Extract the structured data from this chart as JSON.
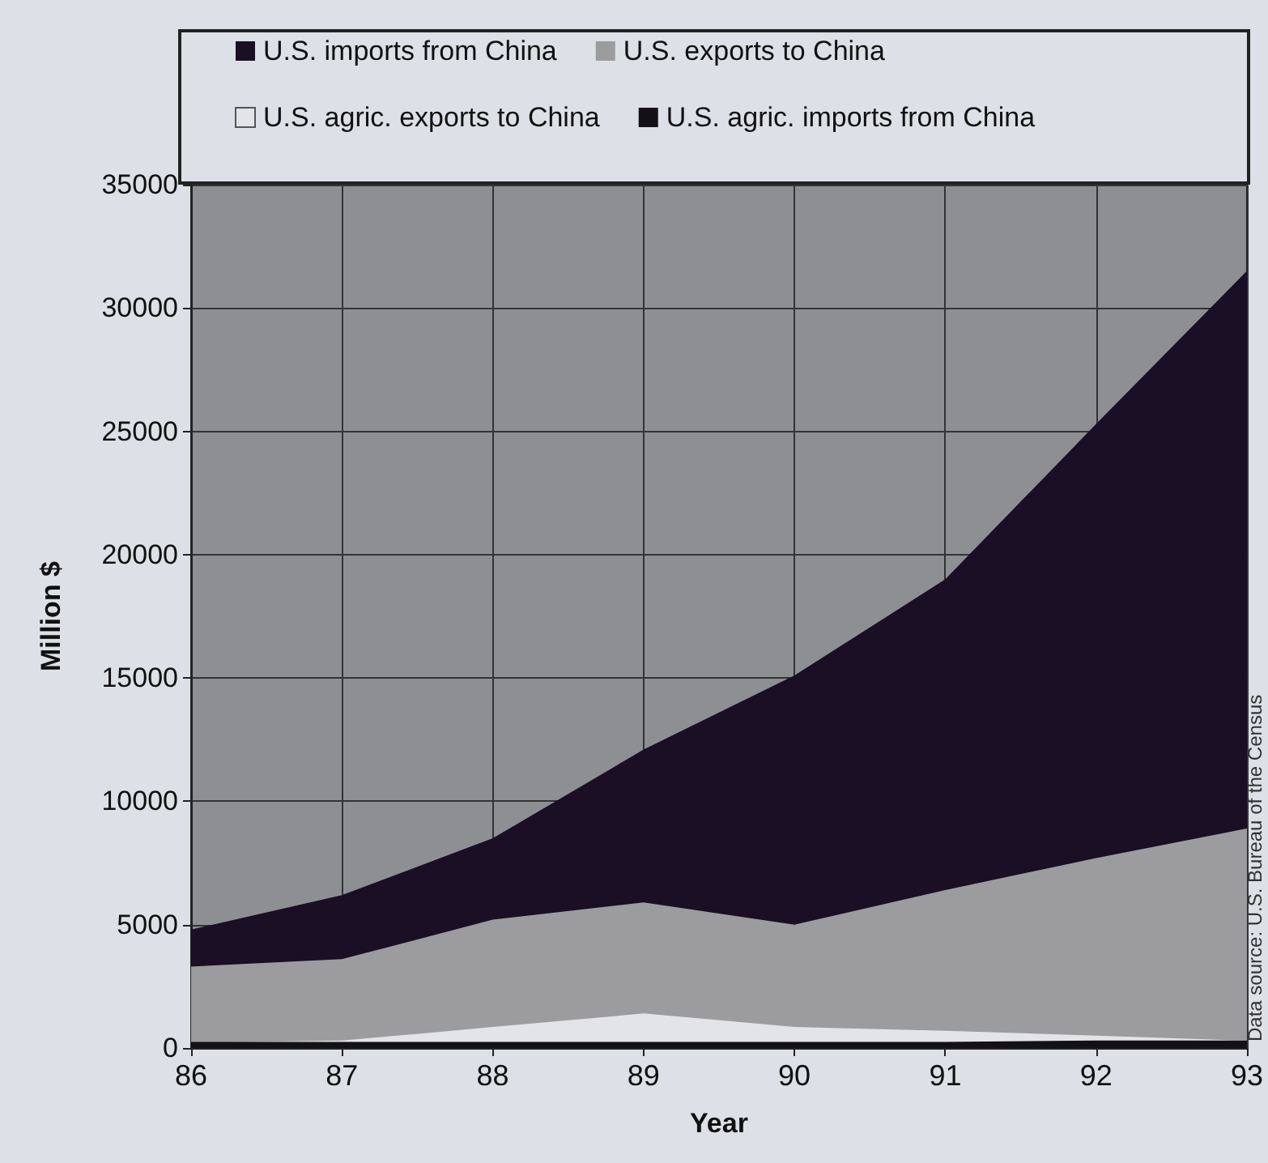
{
  "chart_data": {
    "type": "area",
    "xlabel": "Year",
    "ylabel": "Million $",
    "x": [
      86,
      87,
      88,
      89,
      90,
      91,
      92,
      93
    ],
    "series": [
      {
        "name": "U.S. imports from China",
        "color": "#1a0f24",
        "values": [
          4800,
          6200,
          8500,
          12100,
          15100,
          19000,
          25300,
          31500
        ]
      },
      {
        "name": "U.S. exports to China",
        "color": "#9c9c9f",
        "values": [
          3300,
          3600,
          5200,
          5900,
          5000,
          6400,
          7700,
          8900
        ]
      },
      {
        "name": "U.S. agric. exports to China",
        "color": "#e2e4e8",
        "values": [
          200,
          300,
          850,
          1400,
          850,
          700,
          500,
          300
        ]
      },
      {
        "name": "U.S. agric. imports from China",
        "color": "#141018",
        "values": [
          250,
          250,
          250,
          250,
          250,
          250,
          300,
          300
        ]
      }
    ],
    "xlim": [
      86,
      93
    ],
    "xticks": [
      86,
      87,
      88,
      89,
      90,
      91,
      92,
      93
    ],
    "ylim": [
      0,
      35000
    ],
    "yticks": [
      0,
      5000,
      10000,
      15000,
      20000,
      25000,
      30000,
      35000
    ],
    "grid": true,
    "legend": "top",
    "annotations": [
      "Data source: U.S. Bureau of the Census"
    ]
  }
}
